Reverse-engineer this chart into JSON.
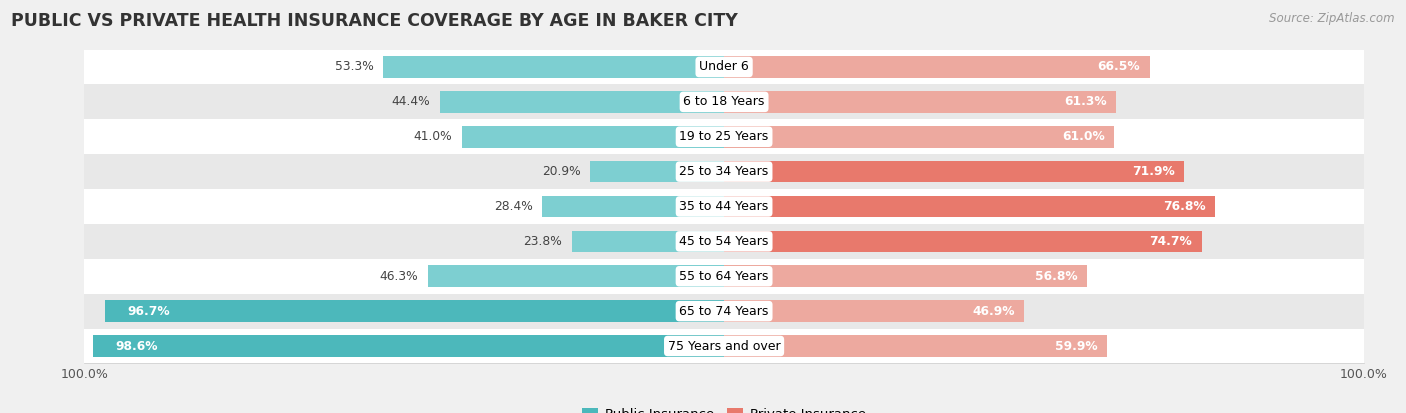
{
  "title": "PUBLIC VS PRIVATE HEALTH INSURANCE COVERAGE BY AGE IN BAKER CITY",
  "source": "Source: ZipAtlas.com",
  "categories": [
    "Under 6",
    "6 to 18 Years",
    "19 to 25 Years",
    "25 to 34 Years",
    "35 to 44 Years",
    "45 to 54 Years",
    "55 to 64 Years",
    "65 to 74 Years",
    "75 Years and over"
  ],
  "public_values": [
    53.3,
    44.4,
    41.0,
    20.9,
    28.4,
    23.8,
    46.3,
    96.7,
    98.6
  ],
  "private_values": [
    66.5,
    61.3,
    61.0,
    71.9,
    76.8,
    74.7,
    56.8,
    46.9,
    59.9
  ],
  "public_color": "#4cb8bb",
  "private_color": "#e8796c",
  "public_color_light": "#7dcfd1",
  "private_color_light": "#eda99f",
  "legend_public": "Public Insurance",
  "legend_private": "Private Insurance",
  "bg_color": "#f0f0f0",
  "row_bg_light": "#ffffff",
  "row_bg_dark": "#e8e8e8",
  "max_val": 100.0,
  "bar_height": 0.62,
  "title_fontsize": 12.5,
  "source_fontsize": 8.5,
  "category_fontsize": 9.0,
  "value_fontsize": 8.8
}
